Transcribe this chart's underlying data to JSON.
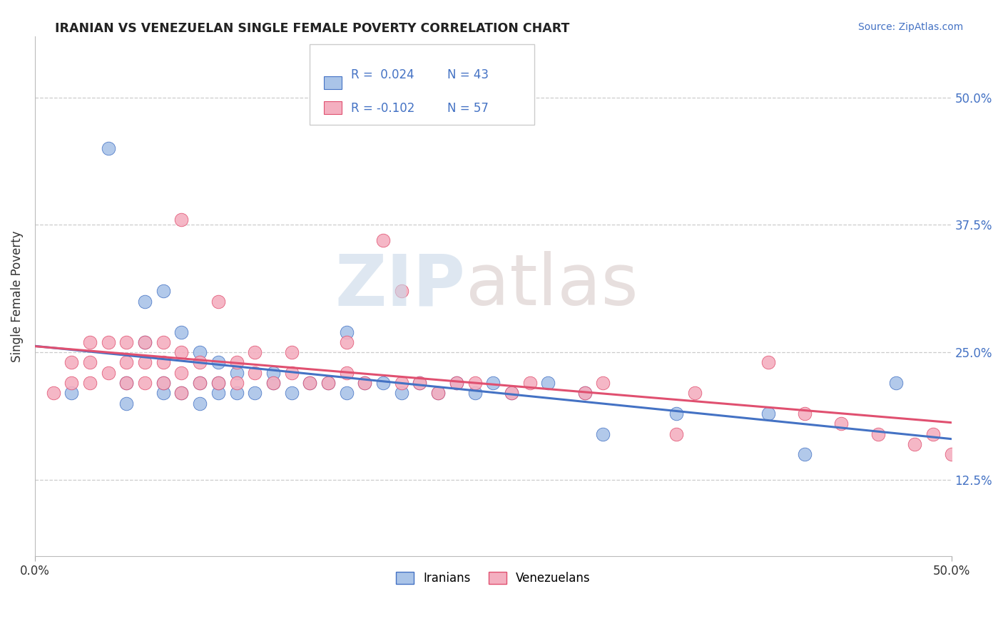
{
  "title": "IRANIAN VS VENEZUELAN SINGLE FEMALE POVERTY CORRELATION CHART",
  "source": "Source: ZipAtlas.com",
  "ylabel": "Single Female Poverty",
  "xlim": [
    0.0,
    0.5
  ],
  "ylim": [
    0.05,
    0.56
  ],
  "yticks": [
    0.125,
    0.25,
    0.375,
    0.5
  ],
  "ytick_labels": [
    "12.5%",
    "25.0%",
    "37.5%",
    "50.0%"
  ],
  "iranian_color": "#aac4e8",
  "venezuelan_color": "#f4afc0",
  "iranian_line_color": "#4472c4",
  "venezuelan_line_color": "#e05070",
  "legend_R1": " 0.024",
  "legend_N1": "43",
  "legend_R2": "-0.102",
  "legend_N2": "57",
  "iranians_x": [
    0.02,
    0.04,
    0.05,
    0.05,
    0.06,
    0.06,
    0.07,
    0.07,
    0.07,
    0.08,
    0.08,
    0.09,
    0.09,
    0.09,
    0.1,
    0.1,
    0.1,
    0.11,
    0.11,
    0.12,
    0.13,
    0.13,
    0.14,
    0.15,
    0.16,
    0.17,
    0.17,
    0.18,
    0.19,
    0.2,
    0.21,
    0.22,
    0.23,
    0.24,
    0.25,
    0.26,
    0.28,
    0.3,
    0.31,
    0.35,
    0.4,
    0.42,
    0.47
  ],
  "iranians_y": [
    0.21,
    0.45,
    0.2,
    0.22,
    0.26,
    0.3,
    0.21,
    0.22,
    0.31,
    0.21,
    0.27,
    0.2,
    0.22,
    0.25,
    0.21,
    0.22,
    0.24,
    0.21,
    0.23,
    0.21,
    0.22,
    0.23,
    0.21,
    0.22,
    0.22,
    0.21,
    0.27,
    0.22,
    0.22,
    0.21,
    0.22,
    0.21,
    0.22,
    0.21,
    0.22,
    0.21,
    0.22,
    0.21,
    0.17,
    0.19,
    0.19,
    0.15,
    0.22
  ],
  "venezuelans_x": [
    0.01,
    0.02,
    0.02,
    0.03,
    0.03,
    0.03,
    0.04,
    0.04,
    0.05,
    0.05,
    0.05,
    0.06,
    0.06,
    0.06,
    0.07,
    0.07,
    0.07,
    0.08,
    0.08,
    0.08,
    0.08,
    0.09,
    0.09,
    0.1,
    0.1,
    0.11,
    0.11,
    0.12,
    0.12,
    0.13,
    0.14,
    0.14,
    0.15,
    0.16,
    0.17,
    0.17,
    0.18,
    0.19,
    0.2,
    0.2,
    0.21,
    0.22,
    0.23,
    0.24,
    0.26,
    0.27,
    0.3,
    0.31,
    0.35,
    0.36,
    0.4,
    0.42,
    0.44,
    0.46,
    0.48,
    0.49,
    0.5
  ],
  "venezuelans_y": [
    0.21,
    0.22,
    0.24,
    0.22,
    0.24,
    0.26,
    0.23,
    0.26,
    0.22,
    0.24,
    0.26,
    0.22,
    0.24,
    0.26,
    0.22,
    0.24,
    0.26,
    0.21,
    0.23,
    0.25,
    0.38,
    0.22,
    0.24,
    0.22,
    0.3,
    0.22,
    0.24,
    0.23,
    0.25,
    0.22,
    0.23,
    0.25,
    0.22,
    0.22,
    0.23,
    0.26,
    0.22,
    0.36,
    0.22,
    0.31,
    0.22,
    0.21,
    0.22,
    0.22,
    0.21,
    0.22,
    0.21,
    0.22,
    0.17,
    0.21,
    0.24,
    0.19,
    0.18,
    0.17,
    0.16,
    0.17,
    0.15
  ]
}
